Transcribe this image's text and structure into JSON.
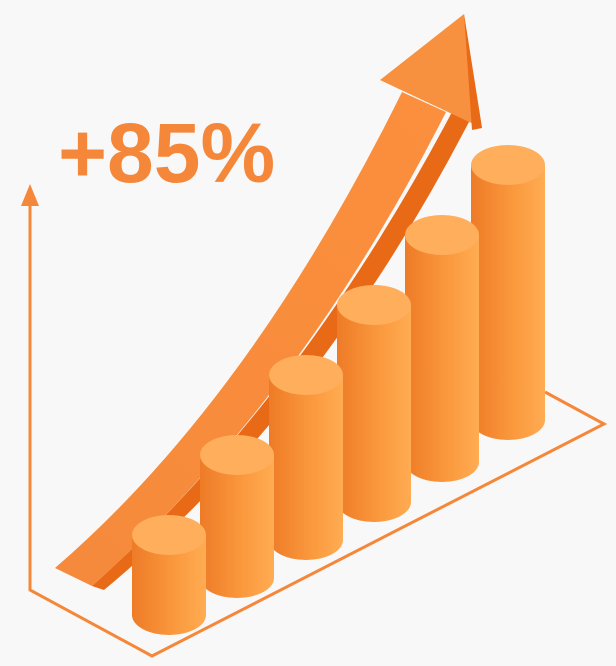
{
  "headline": "+85%"
}
